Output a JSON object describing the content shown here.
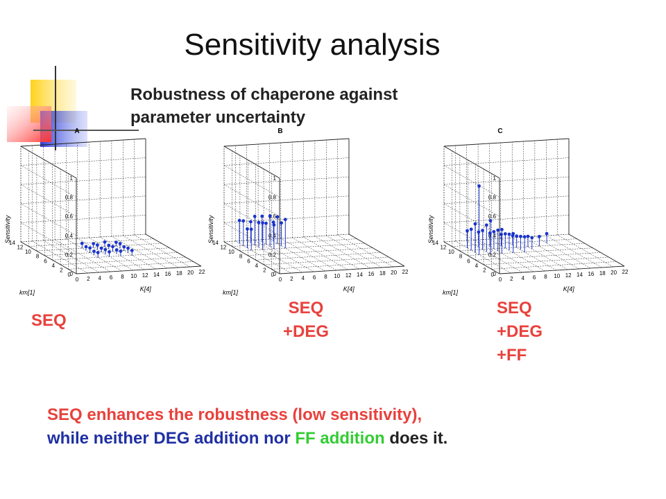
{
  "slide": {
    "title": "Sensitivity analysis",
    "subtitle_line1": "Robustness of chaperone against",
    "subtitle_line2": "parameter uncertainty"
  },
  "labels": {
    "a": [
      "SEQ"
    ],
    "b": [
      "SEQ",
      "+DEG"
    ],
    "c": [
      "SEQ",
      "+DEG",
      "+FF"
    ]
  },
  "summary": {
    "line1": "SEQ enhances the robustness (low sensitivity),",
    "line2_part1": "while neither DEG addition nor ",
    "line2_part2": "FF addition",
    "line2_part3": " does it."
  },
  "colors": {
    "label_red": "#e8413c",
    "summary_blue": "#1f2fa3",
    "summary_green": "#33cc33",
    "stem_blue": "#1a33cc"
  },
  "chart_data": [
    {
      "type": "3d-stem",
      "panel": "A",
      "xlabel": "K[4]",
      "ylabel": "km[1]",
      "zlabel": "Sensitivity",
      "x_ticks": [
        0,
        2,
        4,
        6,
        8,
        10,
        12,
        14,
        16,
        18,
        20,
        22
      ],
      "y_ticks": [
        0,
        2,
        4,
        6,
        8,
        10,
        12,
        14
      ],
      "z_ticks": [
        0,
        0.2,
        0.4,
        0.6,
        0.8,
        1
      ],
      "xlim": [
        0,
        22
      ],
      "ylim": [
        0,
        14
      ],
      "zlim": [
        0,
        1
      ],
      "points": [
        {
          "x": 8,
          "y": 6,
          "z": 0.05
        },
        {
          "x": 10,
          "y": 6,
          "z": 0.05
        },
        {
          "x": 12,
          "y": 6,
          "z": 0.05
        },
        {
          "x": 14,
          "y": 6,
          "z": 0.05
        },
        {
          "x": 8,
          "y": 7,
          "z": 0.04
        },
        {
          "x": 10,
          "y": 7,
          "z": 0.05
        },
        {
          "x": 12,
          "y": 7,
          "z": 0.04
        },
        {
          "x": 14,
          "y": 7,
          "z": 0.05
        },
        {
          "x": 8,
          "y": 8,
          "z": 0.05
        },
        {
          "x": 10,
          "y": 8,
          "z": 0.04
        },
        {
          "x": 12,
          "y": 8,
          "z": 0.05
        },
        {
          "x": 14,
          "y": 8,
          "z": 0.04
        },
        {
          "x": 8,
          "y": 9,
          "z": 0.04
        },
        {
          "x": 10,
          "y": 9,
          "z": 0.05
        },
        {
          "x": 12,
          "y": 9,
          "z": 0.04
        },
        {
          "x": 14,
          "y": 9,
          "z": 0.05
        },
        {
          "x": 8,
          "y": 10,
          "z": 0.05
        },
        {
          "x": 10,
          "y": 10,
          "z": 0.04
        },
        {
          "x": 12,
          "y": 10,
          "z": 0.05
        },
        {
          "x": 14,
          "y": 10,
          "z": 0.04
        }
      ]
    },
    {
      "type": "3d-stem",
      "panel": "B",
      "xlabel": "K[4]",
      "ylabel": "km[1]",
      "zlabel": "Sensitivity",
      "x_ticks": [
        0,
        2,
        4,
        6,
        8,
        10,
        12,
        14,
        16,
        18,
        20,
        22
      ],
      "y_ticks": [
        0,
        2,
        4,
        6,
        8,
        10,
        12,
        14
      ],
      "z_ticks": [
        0,
        0.2,
        0.4,
        0.6,
        0.8,
        1
      ],
      "xlim": [
        0,
        22
      ],
      "ylim": [
        0,
        14
      ],
      "zlim": [
        0,
        1
      ],
      "points": [
        {
          "x": 2,
          "y": 10,
          "z": 0.22
        },
        {
          "x": 4,
          "y": 10,
          "z": 0.28
        },
        {
          "x": 6,
          "y": 10,
          "z": 0.25
        },
        {
          "x": 8,
          "y": 10,
          "z": 0.3
        },
        {
          "x": 2,
          "y": 11,
          "z": 0.2
        },
        {
          "x": 4,
          "y": 11,
          "z": 0.26
        },
        {
          "x": 6,
          "y": 11,
          "z": 0.32
        },
        {
          "x": 8,
          "y": 11,
          "z": 0.24
        },
        {
          "x": 2,
          "y": 12,
          "z": 0.26
        },
        {
          "x": 4,
          "y": 12,
          "z": 0.3
        },
        {
          "x": 6,
          "y": 12,
          "z": 0.22
        },
        {
          "x": 8,
          "y": 12,
          "z": 0.28
        },
        {
          "x": 2,
          "y": 13,
          "z": 0.24
        },
        {
          "x": 4,
          "y": 13,
          "z": 0.22
        },
        {
          "x": 6,
          "y": 13,
          "z": 0.27
        },
        {
          "x": 8,
          "y": 13,
          "z": 0.2
        }
      ]
    },
    {
      "type": "3d-stem",
      "panel": "C",
      "xlabel": "K[4]",
      "ylabel": "km[1]",
      "zlabel": "Sensitivity",
      "x_ticks": [
        0,
        2,
        4,
        6,
        8,
        10,
        12,
        14,
        16,
        18,
        20,
        22
      ],
      "y_ticks": [
        0,
        2,
        4,
        6,
        8,
        10,
        12,
        14
      ],
      "z_ticks": [
        0,
        0.2,
        0.4,
        0.6,
        0.8,
        1
      ],
      "xlim": [
        0,
        22
      ],
      "ylim": [
        0,
        14
      ],
      "zlim": [
        0,
        1
      ],
      "points": [
        {
          "x": 2,
          "y": 8,
          "z": 0.72
        },
        {
          "x": 2,
          "y": 9,
          "z": 0.3
        },
        {
          "x": 2,
          "y": 10,
          "z": 0.22
        },
        {
          "x": 2,
          "y": 11,
          "z": 0.18
        },
        {
          "x": 4,
          "y": 8,
          "z": 0.35
        },
        {
          "x": 4,
          "y": 9,
          "z": 0.28
        },
        {
          "x": 4,
          "y": 10,
          "z": 0.2
        },
        {
          "x": 4,
          "y": 11,
          "z": 0.16
        },
        {
          "x": 6,
          "y": 8,
          "z": 0.25
        },
        {
          "x": 6,
          "y": 9,
          "z": 0.22
        },
        {
          "x": 6,
          "y": 10,
          "z": 0.18
        },
        {
          "x": 6,
          "y": 11,
          "z": 0.14
        },
        {
          "x": 8,
          "y": 8,
          "z": 0.2
        },
        {
          "x": 8,
          "y": 9,
          "z": 0.17
        },
        {
          "x": 8,
          "y": 10,
          "z": 0.15
        },
        {
          "x": 8,
          "y": 11,
          "z": 0.12
        },
        {
          "x": 10,
          "y": 8,
          "z": 0.16
        },
        {
          "x": 10,
          "y": 9,
          "z": 0.14
        },
        {
          "x": 10,
          "y": 10,
          "z": 0.12
        },
        {
          "x": 10,
          "y": 11,
          "z": 0.1
        },
        {
          "x": 12,
          "y": 9,
          "z": 0.12
        },
        {
          "x": 12,
          "y": 10,
          "z": 0.11
        },
        {
          "x": 14,
          "y": 10,
          "z": 0.1
        },
        {
          "x": 16,
          "y": 11,
          "z": 0.1
        }
      ]
    }
  ]
}
